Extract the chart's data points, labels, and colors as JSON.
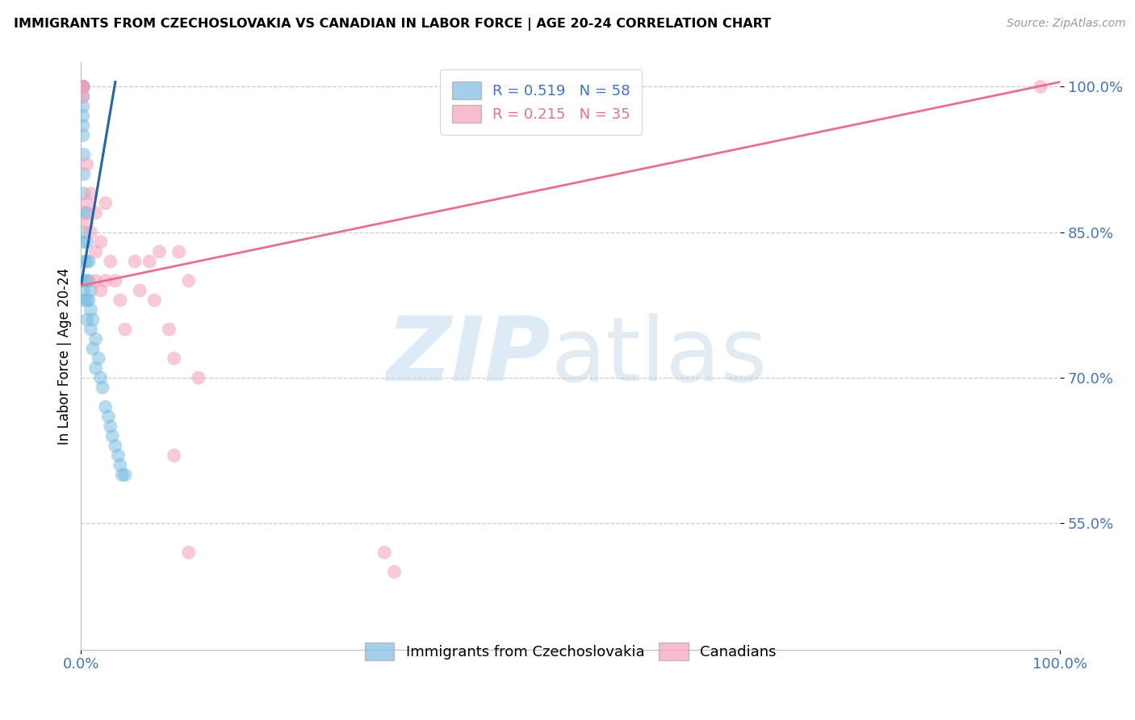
{
  "title": "IMMIGRANTS FROM CZECHOSLOVAKIA VS CANADIAN IN LABOR FORCE | AGE 20-24 CORRELATION CHART",
  "source": "Source: ZipAtlas.com",
  "ylabel": "In Labor Force | Age 20-24",
  "xlim": [
    0.0,
    1.0
  ],
  "ylim": [
    0.42,
    1.025
  ],
  "yticks": [
    0.55,
    0.7,
    0.85,
    1.0
  ],
  "ytick_labels": [
    "55.0%",
    "70.0%",
    "85.0%",
    "100.0%"
  ],
  "blue_color": "#7bbde0",
  "pink_color": "#f4a0b8",
  "blue_line_color": "#2166ac",
  "pink_line_color": "#e8708a",
  "legend_R_blue": "R = 0.519",
  "legend_N_blue": "N = 58",
  "legend_R_pink": "R = 0.215",
  "legend_N_pink": "N = 35",
  "axis_color": "#4472c4",
  "blue_scatter_x": [
    0.002,
    0.002,
    0.002,
    0.002,
    0.002,
    0.002,
    0.002,
    0.002,
    0.002,
    0.002,
    0.002,
    0.002,
    0.002,
    0.002,
    0.002,
    0.002,
    0.002,
    0.002,
    0.002,
    0.002,
    0.003,
    0.003,
    0.003,
    0.003,
    0.003,
    0.003,
    0.003,
    0.003,
    0.003,
    0.003,
    0.006,
    0.006,
    0.006,
    0.006,
    0.006,
    0.006,
    0.008,
    0.008,
    0.008,
    0.01,
    0.01,
    0.01,
    0.012,
    0.012,
    0.015,
    0.015,
    0.018,
    0.02,
    0.022,
    0.025,
    0.028,
    0.03,
    0.032,
    0.035,
    0.038,
    0.04,
    0.042,
    0.045
  ],
  "blue_scatter_y": [
    1.0,
    1.0,
    1.0,
    1.0,
    1.0,
    1.0,
    1.0,
    1.0,
    1.0,
    1.0,
    1.0,
    1.0,
    1.0,
    1.0,
    1.0,
    0.99,
    0.98,
    0.97,
    0.96,
    0.95,
    0.93,
    0.91,
    0.89,
    0.87,
    0.85,
    0.84,
    0.82,
    0.8,
    0.79,
    0.78,
    0.87,
    0.84,
    0.82,
    0.8,
    0.78,
    0.76,
    0.82,
    0.8,
    0.78,
    0.79,
    0.77,
    0.75,
    0.76,
    0.73,
    0.74,
    0.71,
    0.72,
    0.7,
    0.69,
    0.67,
    0.66,
    0.65,
    0.64,
    0.63,
    0.62,
    0.61,
    0.6,
    0.6
  ],
  "pink_scatter_x": [
    0.002,
    0.002,
    0.002,
    0.002,
    0.006,
    0.006,
    0.006,
    0.01,
    0.01,
    0.015,
    0.015,
    0.015,
    0.02,
    0.02,
    0.025,
    0.025,
    0.03,
    0.035,
    0.04,
    0.045,
    0.055,
    0.06,
    0.07,
    0.075,
    0.08,
    0.09,
    0.095,
    0.1,
    0.11,
    0.12,
    0.095,
    0.11,
    0.98,
    0.31,
    0.32
  ],
  "pink_scatter_y": [
    1.0,
    1.0,
    1.0,
    0.99,
    0.92,
    0.88,
    0.86,
    0.89,
    0.85,
    0.87,
    0.83,
    0.8,
    0.84,
    0.79,
    0.88,
    0.8,
    0.82,
    0.8,
    0.78,
    0.75,
    0.82,
    0.79,
    0.82,
    0.78,
    0.83,
    0.75,
    0.72,
    0.83,
    0.8,
    0.7,
    0.62,
    0.52,
    1.0,
    0.52,
    0.5
  ],
  "blue_trend_x0": 0.0,
  "blue_trend_y0": 0.795,
  "blue_trend_x1": 0.035,
  "blue_trend_y1": 1.005,
  "pink_trend_x0": 0.0,
  "pink_trend_y0": 0.795,
  "pink_trend_x1": 1.0,
  "pink_trend_y1": 1.005
}
